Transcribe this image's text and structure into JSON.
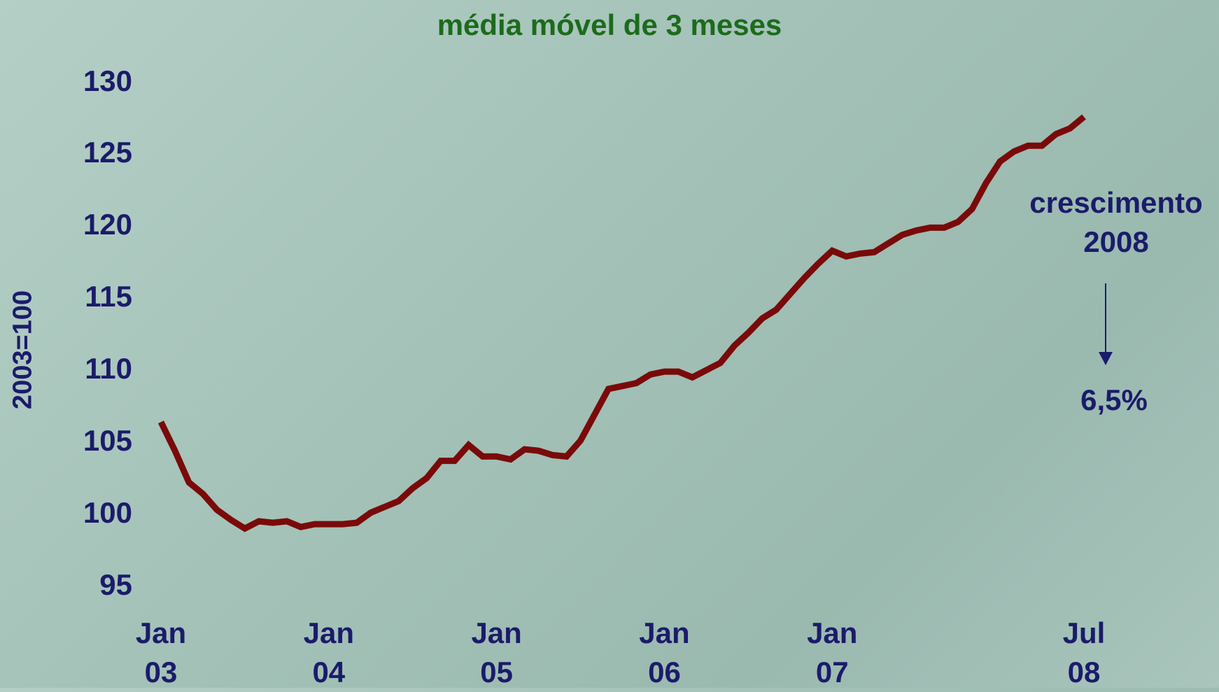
{
  "chart_data": {
    "type": "line",
    "title": "média móvel de 3 meses",
    "y_label": "2003=100",
    "annotations": [
      "crescimento 2008",
      "6,5%"
    ],
    "categories": [
      "Jan 03",
      null,
      null,
      null,
      null,
      null,
      null,
      null,
      null,
      null,
      null,
      null,
      "Jan 04",
      null,
      null,
      null,
      null,
      null,
      null,
      null,
      null,
      null,
      null,
      null,
      "Jan 05",
      null,
      null,
      null,
      null,
      null,
      null,
      null,
      null,
      null,
      null,
      null,
      "Jan 06",
      null,
      null,
      null,
      null,
      null,
      null,
      null,
      null,
      null,
      null,
      null,
      "Jan 07",
      null,
      null,
      null,
      null,
      null,
      null,
      null,
      null,
      null,
      null,
      null,
      null,
      null,
      null,
      null,
      null,
      null,
      "Jul 08"
    ],
    "values": [
      106.3,
      104.3,
      102.1,
      101.3,
      100.2,
      99.5,
      98.9,
      99.4,
      99.3,
      99.4,
      99.0,
      99.2,
      99.2,
      99.2,
      99.3,
      100.0,
      100.4,
      100.8,
      101.7,
      102.4,
      103.6,
      103.6,
      104.7,
      103.9,
      103.9,
      103.7,
      104.4,
      104.3,
      104.0,
      103.9,
      105.0,
      106.8,
      108.6,
      108.8,
      109.0,
      109.6,
      109.8,
      109.8,
      109.4,
      109.9,
      110.4,
      111.6,
      112.5,
      113.5,
      114.1,
      115.2,
      116.3,
      117.3,
      118.2,
      117.8,
      118.0,
      118.1,
      118.7,
      119.3,
      119.6,
      119.8,
      119.8,
      120.2,
      121.1,
      122.9,
      124.4,
      125.1,
      125.5,
      125.5,
      126.3,
      126.7,
      127.5
    ],
    "color": "#7a0a0a",
    "ylim": [
      95,
      130
    ],
    "yticks": [
      95,
      100,
      105,
      110,
      115,
      120,
      125,
      130
    ],
    "grid": false
  }
}
